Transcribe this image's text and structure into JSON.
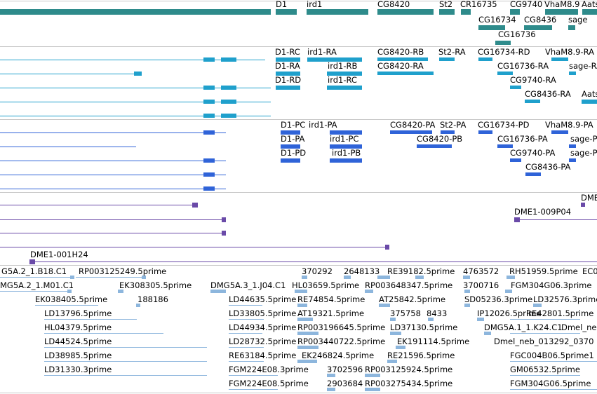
{
  "colors": {
    "gene": "#2e8b8b",
    "mrna_annot": "#1fa0cc",
    "mrna_pred": "#2f63d8",
    "clone": "#6a4aa8",
    "est": "#8db6dd",
    "separator": "#c8c8c8"
  },
  "tracks": {
    "genes": {
      "labels": [
        "D1",
        "ird1",
        "CG8420",
        "St2",
        "CR16735",
        "CG9740",
        "VhaM8.9",
        "Aats",
        "CG16734",
        "CG8436",
        "sage",
        "CG16736"
      ]
    },
    "annotated_transcripts": {
      "labels": [
        "D1-RC",
        "ird1-RA",
        "CG8420-RB",
        "St2-RA",
        "CG16734-RD",
        "VhaM8.9-RA",
        "D1-RA",
        "ird1-RB",
        "CG8420-RA",
        "CG16736-RA",
        "sage-RA",
        "D1-RD",
        "ird1-RC",
        "CG9740-RA",
        "CG8436-RA",
        "Aats"
      ]
    },
    "predicted_transcripts": {
      "labels": [
        "D1-PC",
        "ird1-PA",
        "CG8420-PA",
        "St2-PA",
        "CG16734-PD",
        "VhaM8.9-PA",
        "D1-PA",
        "ird1-PC",
        "CG8420-PB",
        "CG16736-PA",
        "sage-P",
        "D1-PD",
        "ird1-PB",
        "CG9740-PA",
        "sage-P",
        "CG8436-PA"
      ]
    },
    "clones": {
      "labels": [
        "DME1-009P04",
        "DME1-001H24",
        "DMB"
      ]
    },
    "ests": {
      "labels": [
        "G5A.2_1.B18.C1",
        "RP003125249.5prime",
        "370292",
        "2648133",
        "RE39182.5prime",
        "4763572",
        "RH51959.5prime",
        "EC0",
        "MG5A.2_1.M01.C1",
        "EK308305.5prime",
        "DMG5A.3_1.J04.C1",
        "HL03659.5prime",
        "RP003648347.5prime",
        "3700716",
        "FGM304G06.3prime",
        "EK038405.5prime",
        "188186",
        "LD44635.5prime",
        "RE74854.5prime",
        "AT25842.5prime",
        "SD05236.3prime",
        "LD32576.3prime",
        "LD13796.5prime",
        "LD33805.5prime",
        "AT19321.5prime",
        "375758",
        "8433",
        "IP12026.5prime",
        "RE42801.5prime",
        "HL04379.5prime",
        "LD44934.5prime",
        "RP003196645.5prime",
        "LD37130.5prime",
        "DMG5A.1_1.K24.C1",
        "Dmel_ne",
        "LD44524.5prime",
        "LD28732.5prime",
        "RP003440722.5prime",
        "EK191114.5prime",
        "Dmel_neb_013292_0370",
        "LD38985.5prime",
        "RE63184.5prime",
        "EK246824.5prime",
        "RE21596.5prime",
        "FGC004B06.5prime1",
        "LD31330.3prime",
        "FGM224E08.3prime",
        "3702596",
        "RP003125924.5prime",
        "GM06532.5prime",
        "FGM224E08.5prime",
        "2903684",
        "RP003275434.5prime",
        "FGM304G06.5prime"
      ]
    }
  }
}
